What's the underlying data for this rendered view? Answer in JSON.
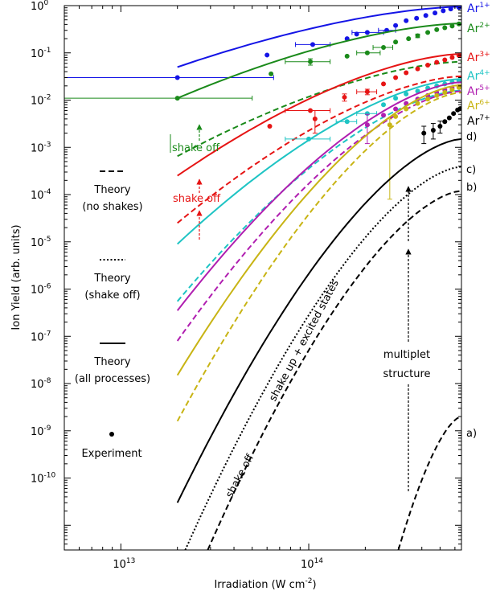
{
  "chart_data": {
    "type": "line",
    "xlabel": "Irradiation (W cm",
    "xlabel_sup": "-2",
    "xlabel_end": ")",
    "ylabel": "Ion Yield (arb. units)",
    "x_scale": "log",
    "y_scale": "log",
    "xlim": [
      5000000000000.0,
      650000000000000.0
    ],
    "ylim": [
      3e-12,
      1
    ],
    "grid": false,
    "x_ticks": [
      {
        "value": 10000000000000.0,
        "label": "10",
        "sup": "13"
      },
      {
        "value": 100000000000000.0,
        "label": "10",
        "sup": "14"
      }
    ],
    "y_ticks": [
      {
        "value": 1,
        "label": "10",
        "sup": "0"
      },
      {
        "value": 0.1,
        "label": "10",
        "sup": "-1"
      },
      {
        "value": 0.01,
        "label": "10",
        "sup": "-2"
      },
      {
        "value": 0.001,
        "label": "10",
        "sup": "-3"
      },
      {
        "value": 0.0001,
        "label": "10",
        "sup": "-4"
      },
      {
        "value": 1e-05,
        "label": "10",
        "sup": "-5"
      },
      {
        "value": 1e-06,
        "label": "10",
        "sup": "-6"
      },
      {
        "value": 1e-07,
        "label": "10",
        "sup": "-7"
      },
      {
        "value": 1e-08,
        "label": "10",
        "sup": "-8"
      },
      {
        "value": 1e-09,
        "label": "10",
        "sup": "-9"
      },
      {
        "value": 1e-10,
        "label": "10",
        "sup": "-10"
      }
    ],
    "series": [
      {
        "name": "Ar",
        "charge": "1+",
        "color": "#1414e6",
        "lines": [
          {
            "style": "solid",
            "x": [
              20000000000000.0,
              650000000000000.0
            ],
            "y": [
              0.05,
              0.95
            ]
          }
        ],
        "points": [
          {
            "x": 20000000000000.0,
            "y": 0.03,
            "xerr": [
              5000000000000.0,
              65000000000000.0
            ]
          },
          {
            "x": 60000000000000.0,
            "y": 0.09
          },
          {
            "x": 105000000000000.0,
            "y": 0.15,
            "xerr": [
              85000000000000.0,
              130000000000000.0
            ]
          },
          {
            "x": 160000000000000.0,
            "y": 0.2
          },
          {
            "x": 180000000000000.0,
            "y": 0.25
          },
          {
            "x": 205000000000000.0,
            "y": 0.27,
            "xerr": [
              170000000000000.0,
              250000000000000.0
            ]
          },
          {
            "x": 260000000000000.0,
            "y": 0.3,
            "xerr": [
              235000000000000.0,
              290000000000000.0
            ]
          },
          {
            "x": 290000000000000.0,
            "y": 0.38
          },
          {
            "x": 330000000000000.0,
            "y": 0.48
          },
          {
            "x": 375000000000000.0,
            "y": 0.54
          },
          {
            "x": 420000000000000.0,
            "y": 0.62
          },
          {
            "x": 470000000000000.0,
            "y": 0.7
          },
          {
            "x": 520000000000000.0,
            "y": 0.78
          },
          {
            "x": 570000000000000.0,
            "y": 0.85
          },
          {
            "x": 630000000000000.0,
            "y": 0.92
          }
        ]
      },
      {
        "name": "Ar",
        "charge": "2+",
        "color": "#1a8a1a",
        "lines": [
          {
            "style": "solid",
            "x": [
              20000000000000.0,
              650000000000000.0
            ],
            "y": [
              0.011,
              0.42
            ]
          },
          {
            "style": "dashed",
            "x": [
              20000000000000.0,
              650000000000000.0
            ],
            "y": [
              0.00065,
              0.065
            ]
          }
        ],
        "points": [
          {
            "x": 20000000000000.0,
            "y": 0.011,
            "xerr": [
              5000000000000.0,
              50000000000000.0
            ]
          },
          {
            "x": 63000000000000.0,
            "y": 0.036
          },
          {
            "x": 102000000000000.0,
            "y": 0.065,
            "xerr": [
              75000000000000.0,
              130000000000000.0
            ],
            "yerr": [
              0.055,
              0.075
            ]
          },
          {
            "x": 160000000000000.0,
            "y": 0.085
          },
          {
            "x": 205000000000000.0,
            "y": 0.1,
            "xerr": [
              180000000000000.0,
              240000000000000.0
            ]
          },
          {
            "x": 250000000000000.0,
            "y": 0.13,
            "xerr": [
              220000000000000.0,
              280000000000000.0
            ]
          },
          {
            "x": 290000000000000.0,
            "y": 0.17
          },
          {
            "x": 340000000000000.0,
            "y": 0.2
          },
          {
            "x": 380000000000000.0,
            "y": 0.23,
            "yerr": [
              0.21,
              0.25
            ]
          },
          {
            "x": 430000000000000.0,
            "y": 0.27
          },
          {
            "x": 480000000000000.0,
            "y": 0.31
          },
          {
            "x": 530000000000000.0,
            "y": 0.34
          },
          {
            "x": 580000000000000.0,
            "y": 0.37
          },
          {
            "x": 630000000000000.0,
            "y": 0.41
          }
        ]
      },
      {
        "name": "Ar",
        "charge": "3+",
        "color": "#e61414",
        "lines": [
          {
            "style": "solid",
            "x": [
              20000000000000.0,
              650000000000000.0
            ],
            "y": [
              0.00025,
              0.095
            ]
          },
          {
            "style": "dashed",
            "x": [
              20000000000000.0,
              650000000000000.0
            ],
            "y": [
              2.5e-05,
              0.032
            ]
          }
        ],
        "points": [
          {
            "x": 62000000000000.0,
            "y": 0.0028
          },
          {
            "x": 102000000000000.0,
            "y": 0.006,
            "xerr": [
              75000000000000.0,
              130000000000000.0
            ]
          },
          {
            "x": 108000000000000.0,
            "y": 0.004,
            "yerr": [
              0.002,
              0.006
            ]
          },
          {
            "x": 155000000000000.0,
            "y": 0.0115,
            "yerr": [
              0.0095,
              0.0135
            ]
          },
          {
            "x": 205000000000000.0,
            "y": 0.015,
            "xerr": [
              180000000000000.0,
              230000000000000.0
            ],
            "yerr": [
              0.013,
              0.017
            ]
          },
          {
            "x": 250000000000000.0,
            "y": 0.022
          },
          {
            "x": 290000000000000.0,
            "y": 0.03
          },
          {
            "x": 330000000000000.0,
            "y": 0.038
          },
          {
            "x": 380000000000000.0,
            "y": 0.046
          },
          {
            "x": 430000000000000.0,
            "y": 0.055
          },
          {
            "x": 480000000000000.0,
            "y": 0.063
          },
          {
            "x": 530000000000000.0,
            "y": 0.071
          },
          {
            "x": 580000000000000.0,
            "y": 0.08
          },
          {
            "x": 630000000000000.0,
            "y": 0.088
          }
        ]
      },
      {
        "name": "Ar",
        "charge": "4+",
        "color": "#1ec4c4",
        "lines": [
          {
            "style": "solid",
            "x": [
              20000000000000.0,
              650000000000000.0
            ],
            "y": [
              9e-06,
              0.028
            ]
          },
          {
            "style": "dashed",
            "x": [
              20000000000000.0,
              650000000000000.0
            ],
            "y": [
              5.5e-07,
              0.016
            ]
          }
        ],
        "points": [
          {
            "x": 100000000000000.0,
            "y": 0.0015,
            "xerr": [
              75000000000000.0,
              130000000000000.0
            ]
          },
          {
            "x": 160000000000000.0,
            "y": 0.0035,
            "xerr": [
              140000000000000.0,
              180000000000000.0
            ]
          },
          {
            "x": 205000000000000.0,
            "y": 0.0052,
            "xerr": [
              180000000000000.0,
              230000000000000.0
            ]
          },
          {
            "x": 250000000000000.0,
            "y": 0.008
          },
          {
            "x": 290000000000000.0,
            "y": 0.011
          },
          {
            "x": 330000000000000.0,
            "y": 0.0135
          },
          {
            "x": 380000000000000.0,
            "y": 0.0155
          },
          {
            "x": 430000000000000.0,
            "y": 0.018
          },
          {
            "x": 480000000000000.0,
            "y": 0.02
          },
          {
            "x": 530000000000000.0,
            "y": 0.022
          },
          {
            "x": 580000000000000.0,
            "y": 0.024
          },
          {
            "x": 630000000000000.0,
            "y": 0.026
          }
        ]
      },
      {
        "name": "Ar",
        "charge": "5+",
        "color": "#b01eb0",
        "lines": [
          {
            "style": "solid",
            "x": [
              20000000000000.0,
              650000000000000.0
            ],
            "y": [
              3.5e-07,
              0.024
            ]
          },
          {
            "style": "dashed",
            "x": [
              20000000000000.0,
              650000000000000.0
            ],
            "y": [
              8e-08,
              0.0155
            ]
          }
        ],
        "points": [
          {
            "x": 205000000000000.0,
            "y": 0.003,
            "yerr": [
              0.0012,
              0.005
            ]
          },
          {
            "x": 250000000000000.0,
            "y": 0.0048
          },
          {
            "x": 290000000000000.0,
            "y": 0.0065
          },
          {
            "x": 330000000000000.0,
            "y": 0.0085
          },
          {
            "x": 380000000000000.0,
            "y": 0.0105
          },
          {
            "x": 430000000000000.0,
            "y": 0.0125
          },
          {
            "x": 480000000000000.0,
            "y": 0.0145
          },
          {
            "x": 530000000000000.0,
            "y": 0.0165
          },
          {
            "x": 580000000000000.0,
            "y": 0.018
          },
          {
            "x": 630000000000000.0,
            "y": 0.0195
          }
        ]
      },
      {
        "name": "Ar",
        "charge": "6+",
        "color": "#c8b414",
        "lines": [
          {
            "style": "solid",
            "x": [
              20000000000000.0,
              650000000000000.0
            ],
            "y": [
              1.5e-08,
              0.021
            ]
          },
          {
            "style": "dashed",
            "x": [
              20000000000000.0,
              650000000000000.0
            ],
            "y": [
              1.6e-09,
              0.0145
            ]
          }
        ],
        "points": [
          {
            "x": 270000000000000.0,
            "y": 0.003,
            "yerr": [
              8e-05,
              0.004
            ]
          },
          {
            "x": 290000000000000.0,
            "y": 0.0045
          },
          {
            "x": 330000000000000.0,
            "y": 0.0065
          },
          {
            "x": 380000000000000.0,
            "y": 0.0085
          },
          {
            "x": 430000000000000.0,
            "y": 0.0105
          },
          {
            "x": 480000000000000.0,
            "y": 0.0125
          },
          {
            "x": 530000000000000.0,
            "y": 0.0145
          },
          {
            "x": 580000000000000.0,
            "y": 0.0165
          },
          {
            "x": 630000000000000.0,
            "y": 0.0185
          }
        ]
      },
      {
        "name": "Ar",
        "charge": "7+",
        "color": "#000000",
        "lines": [
          {
            "style": "solid",
            "x": [
              20000000000000.0,
              650000000000000.0
            ],
            "y": [
              3e-11,
              0.0015
            ]
          },
          {
            "style": "dotted",
            "x": [
              22000000000000.0,
              650000000000000.0
            ],
            "y": [
              3e-12,
              0.00039
            ]
          },
          {
            "style": "dashed",
            "x": [
              29000000000000.0,
              650000000000000.0
            ],
            "y": [
              3e-12,
              0.00012
            ]
          },
          {
            "style": "dashed",
            "x": [
              300000000000000.0,
              650000000000000.0
            ],
            "y": [
              3e-12,
              2e-09
            ]
          }
        ],
        "points": [
          {
            "x": 410000000000000.0,
            "y": 0.002,
            "yerr": [
              0.0012,
              0.0028
            ]
          },
          {
            "x": 460000000000000.0,
            "y": 0.0023,
            "yerr": [
              0.0015,
              0.0032
            ]
          },
          {
            "x": 500000000000000.0,
            "y": 0.0028,
            "yerr": [
              0.002,
              0.0036
            ]
          },
          {
            "x": 530000000000000.0,
            "y": 0.0035
          },
          {
            "x": 560000000000000.0,
            "y": 0.0042
          },
          {
            "x": 590000000000000.0,
            "y": 0.0052
          },
          {
            "x": 620000000000000.0,
            "y": 0.0062
          },
          {
            "x": 640000000000000.0,
            "y": 0.0066
          }
        ]
      }
    ],
    "annotations": {
      "shake_off_green": "shake off",
      "shake_off_red": "shake off",
      "shake_up_excited": "shake up + excited states",
      "shake_off_black": "shake off",
      "multiplet_1": "multiplet",
      "multiplet_2": "structure",
      "curve_a": "a)",
      "curve_b": "b)",
      "curve_c": "c)",
      "curve_d": "d)"
    },
    "legend": {
      "placement": "left",
      "entries": [
        {
          "style": "dashed",
          "line1": "Theory",
          "line2": "(no shakes)"
        },
        {
          "style": "dotted",
          "line1": "Theory",
          "line2": "(shake off)"
        },
        {
          "style": "solid",
          "line1": "Theory",
          "line2": "(all processes)"
        },
        {
          "style": "marker",
          "line1": "Experiment",
          "line2": ""
        }
      ]
    }
  }
}
